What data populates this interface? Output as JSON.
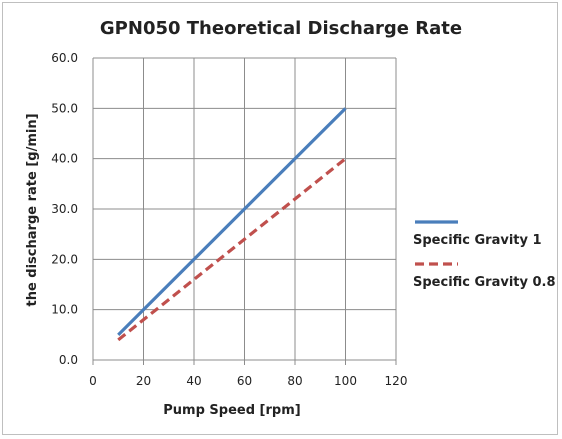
{
  "chart_data": {
    "type": "line",
    "title": "GPN050 Theoretical Discharge Rate",
    "xlabel": "Pump Speed  [rpm]",
    "ylabel": "the discharge rate [g/min]",
    "xlim": [
      0,
      120
    ],
    "ylim": [
      0,
      60
    ],
    "x_ticks": [
      "0",
      "20",
      "40",
      "60",
      "80",
      "100",
      "120"
    ],
    "y_ticks": [
      "0.0",
      "10.0",
      "20.0",
      "30.0",
      "40.0",
      "50.0",
      "60.0"
    ],
    "grid": true,
    "legend_position": "right",
    "series": [
      {
        "name": "Specific Gravity 1",
        "color": "#4a7ebb",
        "style": "solid",
        "x": [
          10,
          100
        ],
        "y": [
          5,
          50
        ]
      },
      {
        "name": "Specific Gravity 0.8",
        "color": "#c0504d",
        "style": "dashed",
        "x": [
          10,
          100
        ],
        "y": [
          4,
          40
        ]
      }
    ]
  }
}
